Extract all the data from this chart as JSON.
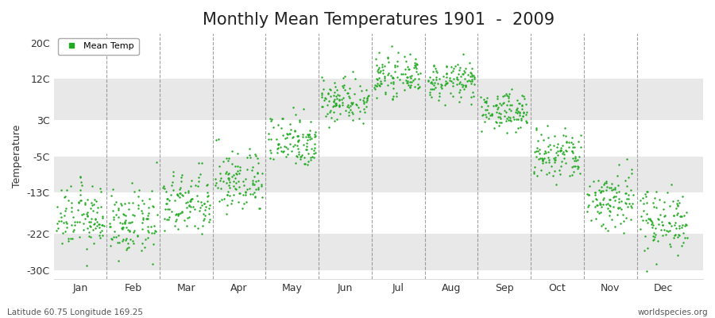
{
  "title": "Monthly Mean Temperatures 1901  -  2009",
  "ylabel": "Temperature",
  "xlabel_labels": [
    "Jan",
    "Feb",
    "Mar",
    "Apr",
    "May",
    "Jun",
    "Jul",
    "Aug",
    "Sep",
    "Oct",
    "Nov",
    "Dec"
  ],
  "ytick_labels": [
    "20C",
    "12C",
    "3C",
    "-5C",
    "-13C",
    "-22C",
    "-30C"
  ],
  "ytick_values": [
    20,
    12,
    3,
    -5,
    -13,
    -22,
    -30
  ],
  "ylim": [
    -32,
    22
  ],
  "legend_label": "Mean Temp",
  "dot_color": "#22aa22",
  "dot_size": 3,
  "bg_light": "#ffffff",
  "bg_dark": "#e8e8e8",
  "title_fontsize": 15,
  "axis_fontsize": 9,
  "footer_left": "Latitude 60.75 Longitude 169.25",
  "footer_right": "worldspecies.org",
  "monthly_means": [
    -18.5,
    -20.0,
    -15.5,
    -10.5,
    -1.5,
    7.5,
    12.5,
    11.5,
    5.0,
    -5.0,
    -14.5,
    -19.0
  ],
  "monthly_stds": [
    3.5,
    3.5,
    3.5,
    3.5,
    3.0,
    2.5,
    2.0,
    2.0,
    2.0,
    3.0,
    3.5,
    3.5
  ],
  "n_years": 109
}
